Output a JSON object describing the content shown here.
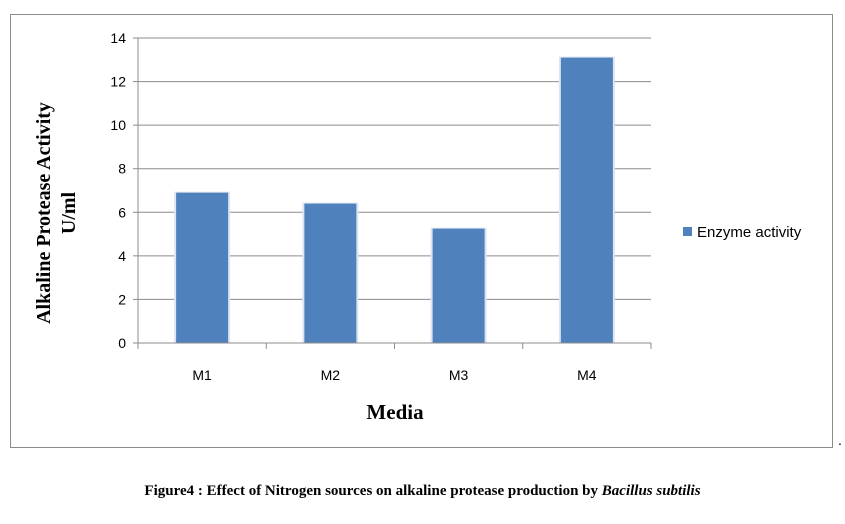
{
  "chart_data": {
    "type": "bar",
    "categories": [
      "M1",
      "M2",
      "M3",
      "M4"
    ],
    "series": [
      {
        "name": "Enzyme activity",
        "values": [
          6.9,
          6.4,
          5.25,
          13.1
        ],
        "color": "#4f81bd"
      }
    ],
    "xlabel": "Media",
    "ylabel_line1": "Alkaline Protease Activity",
    "ylabel_line2": "U/ml",
    "ylim": [
      0,
      14
    ],
    "yticks": [
      0,
      2,
      4,
      6,
      8,
      10,
      12,
      14
    ],
    "grid": true,
    "legend_position": "right"
  },
  "caption": {
    "text": "Figure4 : Effect of Nitrogen sources on alkaline protease production by ",
    "species": "Bacillus subtilis"
  },
  "trailing_mark": "."
}
